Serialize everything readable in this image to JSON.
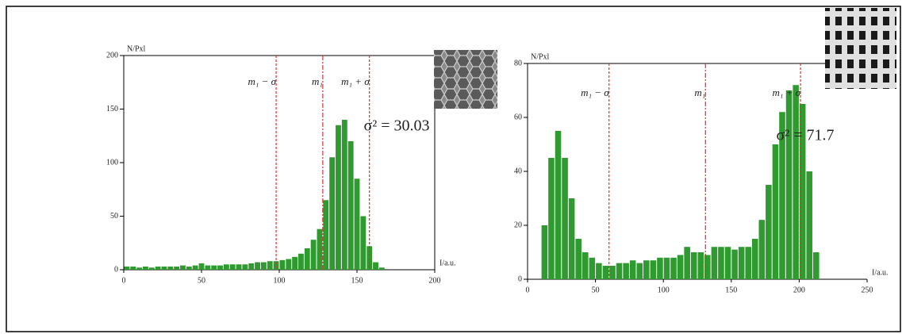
{
  "chart_data": [
    {
      "type": "histogram",
      "bins": [
        0,
        4,
        8,
        12,
        16,
        20,
        24,
        28,
        32,
        36,
        40,
        44,
        48,
        52,
        56,
        60,
        64,
        68,
        72,
        76,
        80,
        84,
        88,
        92,
        96,
        100,
        104,
        108,
        112,
        116,
        120,
        124,
        128,
        132,
        136,
        140,
        144,
        148,
        152,
        156,
        160,
        164,
        168,
        172,
        176,
        180,
        184,
        188,
        192,
        196,
        200
      ],
      "values": [
        3,
        3,
        2,
        3,
        2,
        3,
        3,
        3,
        3,
        4,
        3,
        4,
        6,
        4,
        4,
        4,
        5,
        5,
        5,
        5,
        6,
        7,
        7,
        8,
        8,
        9,
        10,
        12,
        15,
        20,
        28,
        38,
        65,
        105,
        135,
        140,
        120,
        85,
        50,
        22,
        7,
        2,
        0,
        0,
        0,
        0,
        0,
        0,
        0,
        0
      ],
      "color": "#2f9a2f",
      "xlim": [
        0,
        200
      ],
      "xticks": [
        0,
        50,
        100,
        150,
        200
      ],
      "ylim": [
        0,
        200
      ],
      "yticks": [
        0,
        50,
        100,
        150,
        200
      ],
      "x_label": "I/a.u.",
      "y_label": "N/Pxl",
      "annotations": [
        {
          "x": 98,
          "label": "m₁ − σ"
        },
        {
          "x": 128,
          "label": "m₁"
        },
        {
          "x": 158,
          "label": "m₁ + σ"
        }
      ],
      "line_color": "#e03030",
      "inset_label": "σ² = 30.03"
    },
    {
      "type": "histogram",
      "bins": [
        0,
        5,
        10,
        15,
        20,
        25,
        30,
        35,
        40,
        45,
        50,
        55,
        60,
        65,
        70,
        75,
        80,
        85,
        90,
        95,
        100,
        105,
        110,
        115,
        120,
        125,
        130,
        135,
        140,
        145,
        150,
        155,
        160,
        165,
        170,
        175,
        180,
        185,
        190,
        195,
        200,
        205,
        210,
        215,
        220,
        225,
        230,
        235,
        240,
        245,
        250
      ],
      "values": [
        0,
        0,
        20,
        45,
        55,
        45,
        30,
        15,
        10,
        8,
        6,
        5,
        5,
        6,
        6,
        7,
        6,
        7,
        7,
        8,
        8,
        8,
        9,
        12,
        10,
        10,
        9,
        12,
        12,
        12,
        11,
        12,
        12,
        15,
        22,
        35,
        50,
        62,
        70,
        72,
        65,
        40,
        10,
        0,
        0,
        0,
        0,
        0,
        0,
        0
      ],
      "color": "#2f9a2f",
      "xlim": [
        0,
        250
      ],
      "xticks": [
        0,
        50,
        100,
        150,
        200,
        250
      ],
      "ylim": [
        0,
        80
      ],
      "yticks": [
        0,
        20,
        40,
        60,
        80
      ],
      "x_label": "I/a.u.",
      "y_label": "N/Pxl",
      "annotations": [
        {
          "x": 60,
          "label": "m₁ − σ"
        },
        {
          "x": 131,
          "label": "m₁"
        },
        {
          "x": 201,
          "label": "m₁ + σ"
        }
      ],
      "line_color": "#e03030",
      "inset_label": "σ² = 71.7"
    }
  ]
}
